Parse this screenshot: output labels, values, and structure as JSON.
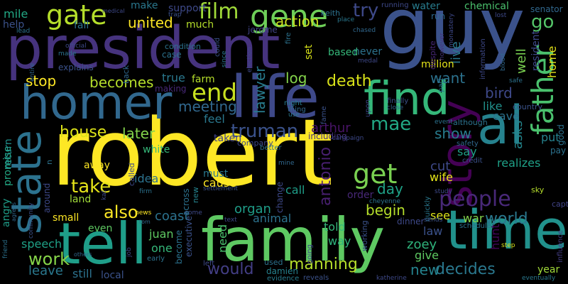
{
  "words": [
    {
      "text": "robert",
      "color": "#fde725"
    },
    {
      "text": "guy",
      "color": "#3b528b"
    },
    {
      "text": "president",
      "color": "#46337e"
    },
    {
      "text": "homer",
      "color": "#31688e"
    },
    {
      "text": "life",
      "color": "#3e4989"
    },
    {
      "text": "family",
      "color": "#5ec962"
    },
    {
      "text": "tell",
      "color": "#1f9e89"
    },
    {
      "text": "time",
      "color": "#21918c"
    },
    {
      "text": "al",
      "color": "#26828e"
    },
    {
      "text": "find",
      "color": "#35b779"
    },
    {
      "text": "story",
      "color": "#440154"
    },
    {
      "text": "state",
      "color": "#2c728e"
    },
    {
      "text": "father",
      "color": "#4ac16d"
    },
    {
      "text": "gene",
      "color": "#6ece58"
    },
    {
      "text": "gate",
      "color": "#b5de2b"
    },
    {
      "text": "people",
      "color": "#482878"
    },
    {
      "text": "film",
      "color": "#a0da39"
    },
    {
      "text": "get",
      "color": "#7ad151"
    },
    {
      "text": "end",
      "color": "#c8e020"
    },
    {
      "text": "world",
      "color": "#2a788e"
    },
    {
      "text": "manning",
      "color": "#b5de2b"
    },
    {
      "text": "decides",
      "color": "#2a788e"
    },
    {
      "text": "truman",
      "color": "#3b528b"
    },
    {
      "text": "house",
      "color": "#dde318"
    },
    {
      "text": "action",
      "color": "#c8e020"
    },
    {
      "text": "united",
      "color": "#fde725"
    },
    {
      "text": "death",
      "color": "#d8e219"
    },
    {
      "text": "take",
      "color": "#e5e419"
    },
    {
      "text": "mae",
      "color": "#22a884"
    },
    {
      "text": "antonio",
      "color": "#481f70"
    },
    {
      "text": "becomes",
      "color": "#b5de2b"
    },
    {
      "text": "later",
      "color": "#84d44b"
    },
    {
      "text": "meeting",
      "color": "#31688e"
    },
    {
      "text": "show",
      "color": "#287c8e"
    },
    {
      "text": "bird",
      "color": "#3e4989"
    },
    {
      "text": "stop",
      "color": "#fde725"
    },
    {
      "text": "want",
      "color": "#2c728e"
    },
    {
      "text": "work",
      "color": "#86d549"
    },
    {
      "text": "also",
      "color": "#fde725"
    },
    {
      "text": "would",
      "color": "#433e85"
    },
    {
      "text": "begin",
      "color": "#b5de2b"
    },
    {
      "text": "go",
      "color": "#54c568"
    },
    {
      "text": "try",
      "color": "#3e4989"
    },
    {
      "text": "log",
      "color": "#84d44b"
    },
    {
      "text": "new",
      "color": "#25838e"
    },
    {
      "text": "arthur",
      "color": "#481467"
    },
    {
      "text": "zoey",
      "color": "#2fb47c"
    },
    {
      "text": "day",
      "color": "#1fa187"
    },
    {
      "text": "cut",
      "color": "#3e4989"
    },
    {
      "text": "asks",
      "color": "#24878e"
    },
    {
      "text": "lawyer",
      "color": "#287c8e"
    },
    {
      "text": "say",
      "color": "#1fa187"
    },
    {
      "text": "well",
      "color": "#7ad151"
    },
    {
      "text": "live",
      "color": "#2a788e"
    },
    {
      "text": "cave",
      "color": "#2c728e"
    },
    {
      "text": "like",
      "color": "#21918c"
    },
    {
      "text": "put",
      "color": "#26828e"
    },
    {
      "text": "realizes",
      "color": "#1fa187"
    },
    {
      "text": "pay",
      "color": "#2c728e"
    },
    {
      "text": "war",
      "color": "#84d44b"
    },
    {
      "text": "see",
      "color": "#dde318"
    },
    {
      "text": "hunt",
      "color": "#450559"
    },
    {
      "text": "law",
      "color": "#3b528b"
    },
    {
      "text": "give",
      "color": "#5ec962"
    },
    {
      "text": "year",
      "color": "#a0da39"
    },
    {
      "text": "organ",
      "color": "#1f9e89"
    },
    {
      "text": "animal",
      "color": "#2c728e"
    },
    {
      "text": "told",
      "color": "#35b779"
    },
    {
      "text": "way",
      "color": "#2fb47c"
    },
    {
      "text": "coast",
      "color": "#2c728e"
    },
    {
      "text": "juan",
      "color": "#5ec962"
    },
    {
      "text": "one",
      "color": "#35b779"
    },
    {
      "text": "need",
      "color": "#4ac16d"
    },
    {
      "text": "must",
      "color": "#2a788e"
    },
    {
      "text": "cause",
      "color": "#fde725"
    },
    {
      "text": "call",
      "color": "#1f9e89"
    },
    {
      "text": "wife",
      "color": "#e5e419"
    },
    {
      "text": "order",
      "color": "#482878"
    },
    {
      "text": "feel",
      "color": "#2a788e"
    },
    {
      "text": "taken",
      "color": "#414487"
    },
    {
      "text": "mile",
      "color": "#22a884"
    },
    {
      "text": "help",
      "color": "#3b528b"
    },
    {
      "text": "fall",
      "color": "#2c728e"
    },
    {
      "text": "make",
      "color": "#2a788e"
    },
    {
      "text": "support",
      "color": "#3e4989"
    },
    {
      "text": "much",
      "color": "#b5de2b"
    },
    {
      "text": "jerome",
      "color": "#414487"
    },
    {
      "text": "water",
      "color": "#287c8e"
    },
    {
      "text": "chemical",
      "color": "#4ac16d"
    },
    {
      "text": "senator",
      "color": "#31688e"
    },
    {
      "text": "home",
      "color": "#e5e419"
    },
    {
      "text": "resident",
      "color": "#3e4989"
    },
    {
      "text": "million",
      "color": "#e5e419"
    },
    {
      "text": "never",
      "color": "#2c728e"
    },
    {
      "text": "based",
      "color": "#35b779"
    },
    {
      "text": "set",
      "color": "#d8e219"
    },
    {
      "text": "true",
      "color": "#2a788e"
    },
    {
      "text": "farm",
      "color": "#b5de2b"
    },
    {
      "text": "making",
      "color": "#482878"
    },
    {
      "text": "white",
      "color": "#35b779"
    },
    {
      "text": "idea",
      "color": "#2c728e"
    },
    {
      "text": "away",
      "color": "#fde725"
    },
    {
      "text": "land",
      "color": "#a0da39"
    },
    {
      "text": "small",
      "color": "#fde725"
    },
    {
      "text": "even",
      "color": "#5ec962"
    },
    {
      "text": "leave",
      "color": "#2a788e"
    },
    {
      "text": "still",
      "color": "#2c728e"
    },
    {
      "text": "local",
      "color": "#3b528b"
    },
    {
      "text": "speech",
      "color": "#1fa187"
    },
    {
      "text": "angry",
      "color": "#1f9e89"
    },
    {
      "text": "promise",
      "color": "#22a884"
    },
    {
      "text": "return",
      "color": "#21918c"
    },
    {
      "text": "damien",
      "color": "#26828e"
    },
    {
      "text": "used",
      "color": "#2c728e"
    },
    {
      "text": "left",
      "color": "#3e4989"
    },
    {
      "text": "evidence",
      "color": "#287c8e"
    },
    {
      "text": "reveals",
      "color": "#3b528b"
    },
    {
      "text": "katherine",
      "color": "#3e4989"
    },
    {
      "text": "eventually",
      "color": "#2a788e"
    },
    {
      "text": "influence",
      "color": "#433e85"
    },
    {
      "text": "capture",
      "color": "#414487"
    },
    {
      "text": "sky",
      "color": "#b5de2b"
    },
    {
      "text": "vice",
      "color": "#e5e419"
    },
    {
      "text": "new",
      "color": "#25838e"
    },
    {
      "text": "company",
      "color": "#3e4989"
    },
    {
      "text": "across",
      "color": "#2c728e"
    },
    {
      "text": "called",
      "color": "#3e4989"
    },
    {
      "text": "become",
      "color": "#2c728e"
    },
    {
      "text": "executive",
      "color": "#3b528b"
    },
    {
      "text": "change",
      "color": "#3e4989"
    },
    {
      "text": "better",
      "color": "#2c728e"
    },
    {
      "text": "safety",
      "color": "#31688e"
    },
    {
      "text": "credit",
      "color": "#3b528b"
    },
    {
      "text": "quickly",
      "color": "#2a788e"
    },
    {
      "text": "including",
      "color": "#46337e"
    },
    {
      "text": "campaign",
      "color": "#3e4989"
    },
    {
      "text": "although",
      "color": "#2c728e"
    },
    {
      "text": "event",
      "color": "#2c728e"
    },
    {
      "text": "finally",
      "color": "#3b528b"
    },
    {
      "text": "close",
      "color": "#31688e"
    },
    {
      "text": "night",
      "color": "#287c8e"
    },
    {
      "text": "thing",
      "color": "#31688e"
    },
    {
      "text": "use",
      "color": "#2a788e"
    },
    {
      "text": "fame",
      "color": "#3b528b"
    },
    {
      "text": "upon",
      "color": "#3e4989"
    },
    {
      "text": "part",
      "color": "#2c728e"
    },
    {
      "text": "safe",
      "color": "#2c728e"
    },
    {
      "text": "country",
      "color": "#3b528b"
    },
    {
      "text": "good",
      "color": "#2c728e"
    },
    {
      "text": "information",
      "color": "#3e4989"
    },
    {
      "text": "despite",
      "color": "#482878"
    },
    {
      "text": "however",
      "color": "#46337e"
    },
    {
      "text": "monastery",
      "color": "#3e4989"
    },
    {
      "text": "blood",
      "color": "#31688e"
    },
    {
      "text": "running",
      "color": "#3e4989"
    },
    {
      "text": "keith",
      "color": "#2c728e"
    },
    {
      "text": "place",
      "color": "#2a788e"
    },
    {
      "text": "chased",
      "color": "#31688e"
    },
    {
      "text": "medal",
      "color": "#3e4989"
    },
    {
      "text": "fire",
      "color": "#2c728e"
    },
    {
      "text": "could",
      "color": "#3b528b"
    },
    {
      "text": "since",
      "color": "#2a788e"
    },
    {
      "text": "election",
      "color": "#3e4989"
    },
    {
      "text": "condition",
      "color": "#2c728e"
    },
    {
      "text": "case",
      "color": "#2c728e"
    },
    {
      "text": "back",
      "color": "#31688e"
    },
    {
      "text": "official",
      "color": "#3e4989"
    },
    {
      "text": "made",
      "color": "#2c728e"
    },
    {
      "text": "entire",
      "color": "#31688e"
    },
    {
      "text": "explains",
      "color": "#3b528b"
    },
    {
      "text": "lead",
      "color": "#2c728e"
    },
    {
      "text": "medical",
      "color": "#3e4989"
    },
    {
      "text": "trap",
      "color": "#3b528b"
    },
    {
      "text": "lost",
      "color": "#3e4989"
    },
    {
      "text": "run",
      "color": "#31688e"
    },
    {
      "text": "n",
      "color": "#2c728e"
    },
    {
      "text": "around",
      "color": "#3e4989"
    },
    {
      "text": "agrees",
      "color": "#31688e"
    },
    {
      "text": "community",
      "color": "#3b528b"
    },
    {
      "text": "friend",
      "color": "#2c728e"
    },
    {
      "text": "kat",
      "color": "#3e4989"
    },
    {
      "text": "firm",
      "color": "#2c728e"
    },
    {
      "text": "news",
      "color": "#fde725"
    },
    {
      "text": "tom",
      "color": "#31688e"
    },
    {
      "text": "job",
      "color": "#3e4989"
    },
    {
      "text": "early",
      "color": "#2c728e"
    },
    {
      "text": "others",
      "color": "#31688e"
    },
    {
      "text": "come",
      "color": "#3e4989"
    },
    {
      "text": "text",
      "color": "#3e4989"
    },
    {
      "text": "settlement",
      "color": "#3b528b"
    },
    {
      "text": "mine",
      "color": "#31688e"
    },
    {
      "text": "going",
      "color": "#3e4989"
    },
    {
      "text": "working",
      "color": "#3b528b"
    },
    {
      "text": "cheyenne",
      "color": "#2c728e"
    },
    {
      "text": "dinner",
      "color": "#3e4989"
    },
    {
      "text": "sends",
      "color": "#3b528b"
    },
    {
      "text": "schedule",
      "color": "#2c728e"
    },
    {
      "text": "step",
      "color": "#d8e219"
    },
    {
      "text": "study",
      "color": "#3e4989"
    },
    {
      "text": "holy",
      "color": "#46337e"
    },
    {
      "text": "sky",
      "color": "#3e4989"
    }
  ]
}
